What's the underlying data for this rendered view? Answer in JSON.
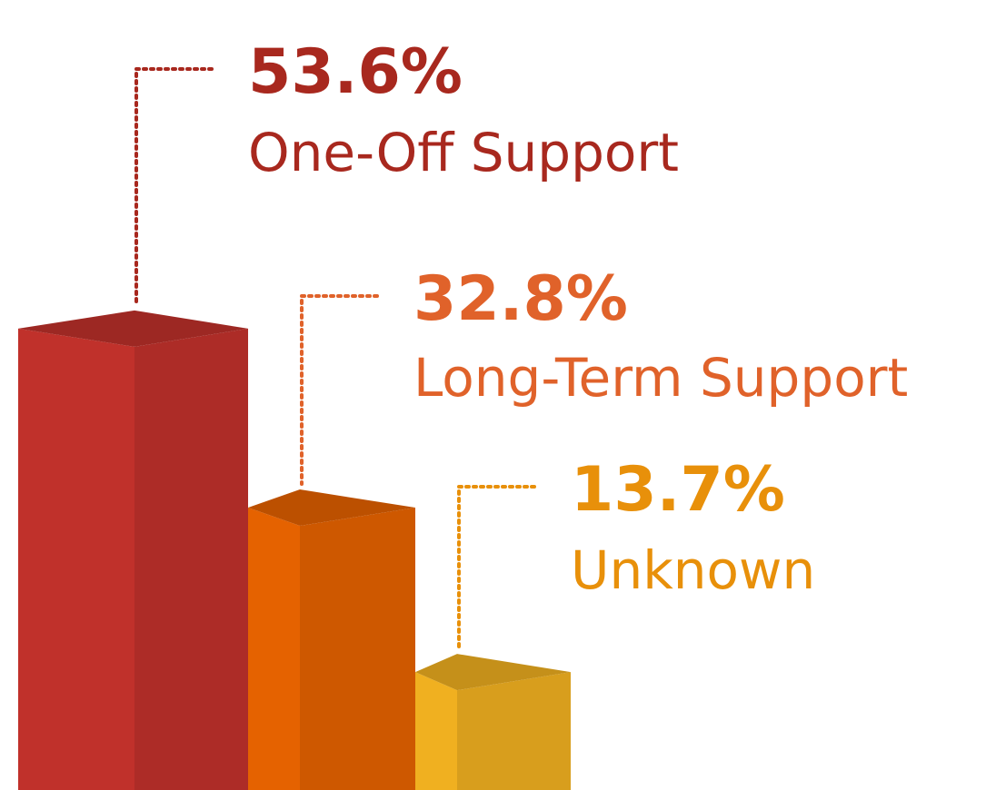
{
  "chart_data": {
    "type": "bar3d",
    "categories": [
      "One-Off Support",
      "Long-Term Support",
      "Unknown"
    ],
    "values": [
      53.6,
      32.8,
      13.7
    ],
    "value_labels": [
      "53.6%",
      "32.8%",
      "13.7%"
    ],
    "colors": [
      "#c0312b",
      "#e56200",
      "#f0b020"
    ],
    "label_colors": [
      "#a8281e",
      "#e0622a",
      "#e8900a"
    ]
  }
}
